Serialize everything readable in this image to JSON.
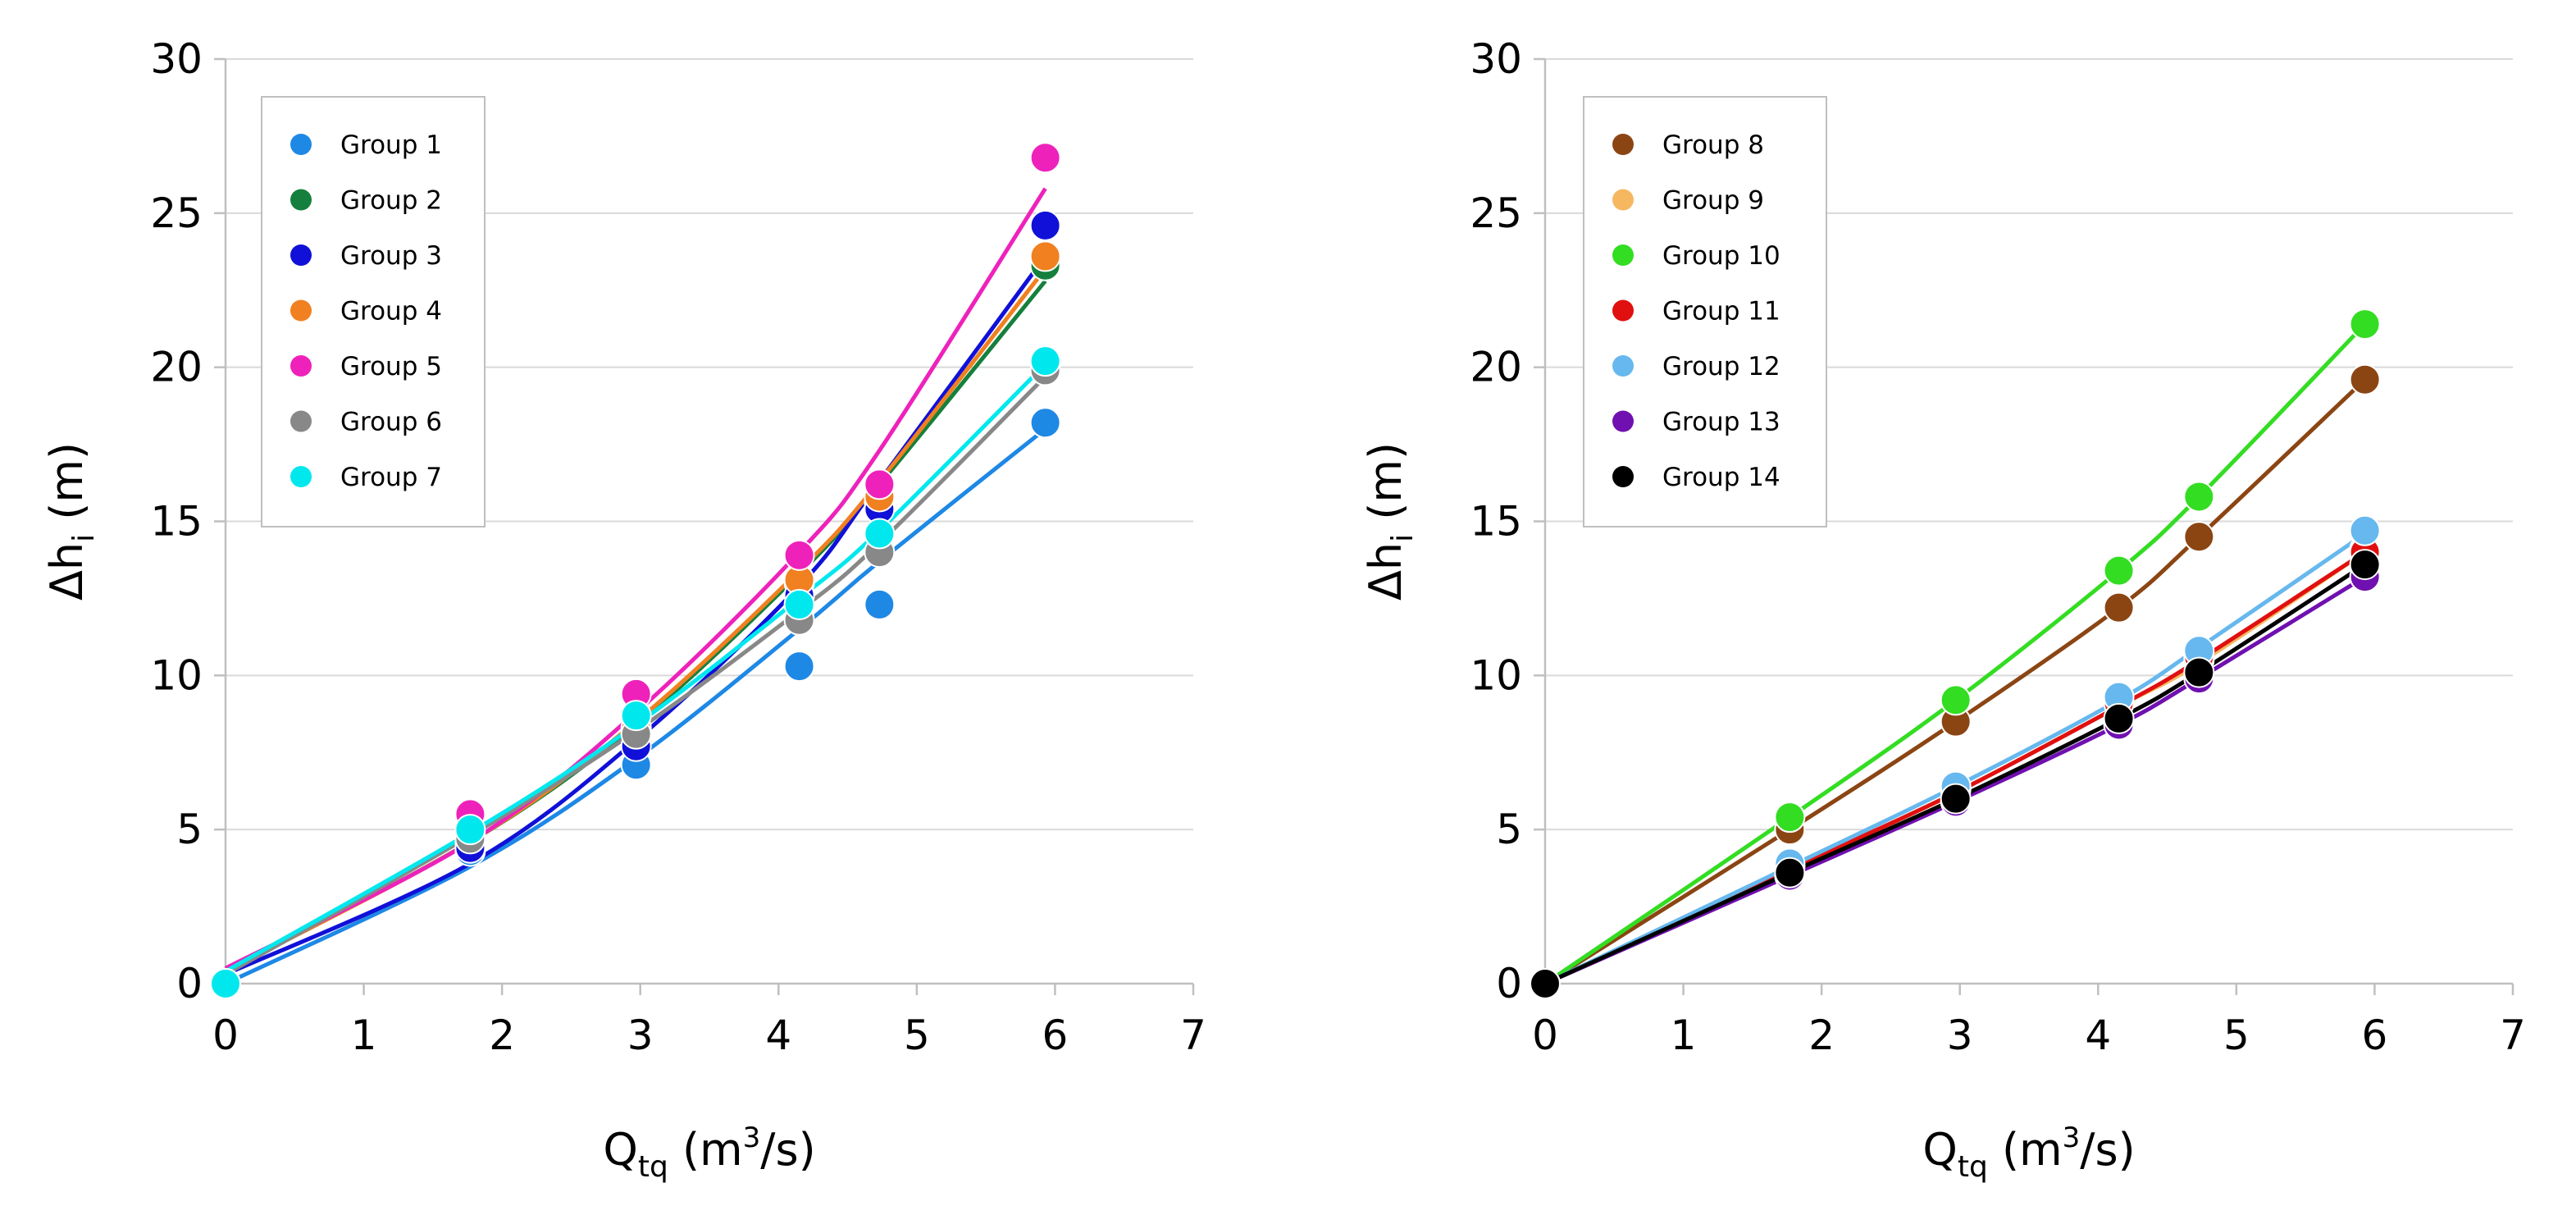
{
  "chart_data": [
    {
      "type": "scatter",
      "xlabel": "Q",
      "xlabel_sub": "tq",
      "xlabel_unit_pre": "(m",
      "xlabel_unit_sup": "3",
      "xlabel_unit_post": "/s)",
      "ylabel": "Δh",
      "ylabel_sub": "i",
      "ylabel_unit": "(m)",
      "xlim": [
        0,
        7
      ],
      "ylim": [
        0,
        30
      ],
      "xticks": [
        0,
        1,
        2,
        3,
        4,
        5,
        6,
        7
      ],
      "yticks": [
        0,
        5,
        10,
        15,
        20,
        25,
        30
      ],
      "grid": "horizontal",
      "legend_position": "top-left",
      "trendline": "power",
      "x": [
        0,
        1.77,
        2.97,
        4.15,
        4.73,
        5.93
      ],
      "series": [
        {
          "name": "Group 1",
          "color": "#1e88e5",
          "values": [
            0,
            4.3,
            7.1,
            10.3,
            12.3,
            18.2
          ],
          "trend": [
            0,
            3.8,
            7.3,
            11.5,
            13.7,
            18.0
          ]
        },
        {
          "name": "Group 2",
          "color": "#15803d",
          "values": [
            0,
            4.6,
            8.2,
            13.0,
            15.6,
            23.3
          ],
          "trend": [
            0.4,
            4.6,
            8.4,
            13.3,
            16.2,
            22.8
          ]
        },
        {
          "name": "Group 3",
          "color": "#1010d8",
          "values": [
            0,
            4.4,
            7.7,
            12.6,
            15.4,
            24.6
          ],
          "trend": [
            0.3,
            3.9,
            7.9,
            12.9,
            16.3,
            23.6
          ]
        },
        {
          "name": "Group 4",
          "color": "#f08020",
          "values": [
            0,
            4.8,
            8.3,
            13.1,
            15.8,
            23.6
          ],
          "trend": [
            0.4,
            4.6,
            8.5,
            13.4,
            16.3,
            23.2
          ]
        },
        {
          "name": "Group 5",
          "color": "#ee22bb",
          "values": [
            0,
            5.5,
            9.4,
            13.9,
            16.2,
            26.8
          ],
          "trend": [
            0.5,
            4.6,
            8.8,
            14.0,
            17.3,
            25.8
          ]
        },
        {
          "name": "Group 6",
          "color": "#888888",
          "values": [
            0,
            4.7,
            8.1,
            11.8,
            14.0,
            19.9
          ],
          "trend": [
            0.3,
            4.8,
            8.2,
            12.1,
            14.3,
            19.7
          ]
        },
        {
          "name": "Group 7",
          "color": "#00e8ee",
          "values": [
            0,
            5.0,
            8.7,
            12.3,
            14.6,
            20.2
          ],
          "trend": [
            0.4,
            4.9,
            8.4,
            12.5,
            14.7,
            20.1
          ]
        }
      ]
    },
    {
      "type": "scatter",
      "xlabel": "Q",
      "xlabel_sub": "tq",
      "xlabel_unit_pre": "(m",
      "xlabel_unit_sup": "3",
      "xlabel_unit_post": "/s)",
      "ylabel": "Δh",
      "ylabel_sub": "i",
      "ylabel_unit": "(m)",
      "xlim": [
        0,
        7
      ],
      "ylim": [
        0,
        30
      ],
      "xticks": [
        0,
        1,
        2,
        3,
        4,
        5,
        6,
        7
      ],
      "yticks": [
        0,
        5,
        10,
        15,
        20,
        25,
        30
      ],
      "grid": "horizontal",
      "legend_position": "top-left",
      "trendline": "power",
      "x": [
        0,
        1.77,
        2.97,
        4.15,
        4.73,
        5.93
      ],
      "series": [
        {
          "name": "Group 8",
          "color": "#8b4513",
          "values": [
            0,
            5.0,
            8.5,
            12.2,
            14.5,
            19.6
          ],
          "trend": [
            0,
            5.0,
            8.5,
            12.2,
            14.5,
            19.6
          ]
        },
        {
          "name": "Group 9",
          "color": "#f5b860",
          "values": [
            0,
            3.8,
            6.3,
            9.1,
            10.5,
            14.1
          ],
          "trend": [
            0,
            3.7,
            6.2,
            9.0,
            10.4,
            14.0
          ]
        },
        {
          "name": "Group 10",
          "color": "#33dd22",
          "values": [
            0,
            5.4,
            9.2,
            13.4,
            15.8,
            21.4
          ],
          "trend": [
            0,
            5.4,
            9.2,
            13.4,
            15.8,
            21.4
          ]
        },
        {
          "name": "Group 11",
          "color": "#e01010",
          "values": [
            0,
            3.8,
            6.3,
            9.1,
            10.6,
            14.0
          ],
          "trend": [
            0,
            3.7,
            6.2,
            9.0,
            10.5,
            14.0
          ]
        },
        {
          "name": "Group 12",
          "color": "#66b8ee",
          "values": [
            0,
            3.9,
            6.4,
            9.3,
            10.8,
            14.7
          ],
          "trend": [
            0,
            3.8,
            6.4,
            9.2,
            10.9,
            14.6
          ]
        },
        {
          "name": "Group 13",
          "color": "#7010b0",
          "values": [
            0,
            3.5,
            5.9,
            8.4,
            9.9,
            13.2
          ],
          "trend": [
            0,
            3.5,
            5.9,
            8.4,
            9.9,
            13.2
          ]
        },
        {
          "name": "Group 14",
          "color": "#000000",
          "values": [
            0,
            3.6,
            6.0,
            8.6,
            10.1,
            13.6
          ],
          "trend": [
            0,
            3.6,
            6.0,
            8.6,
            10.1,
            13.6
          ]
        }
      ]
    }
  ]
}
